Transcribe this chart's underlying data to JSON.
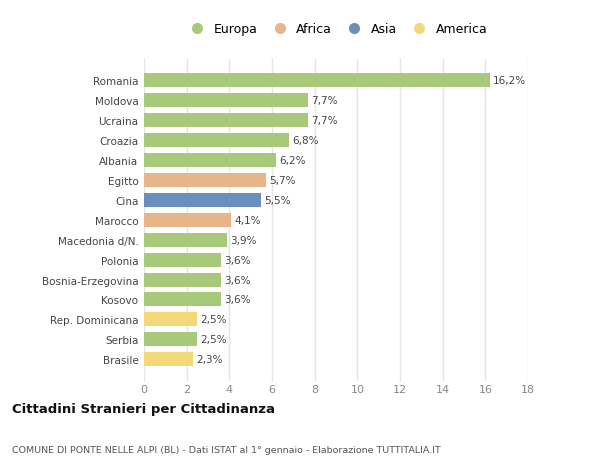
{
  "categories": [
    "Brasile",
    "Serbia",
    "Rep. Dominicana",
    "Kosovo",
    "Bosnia-Erzegovina",
    "Polonia",
    "Macedonia d/N.",
    "Marocco",
    "Cina",
    "Egitto",
    "Albania",
    "Croazia",
    "Ucraina",
    "Moldova",
    "Romania"
  ],
  "values": [
    2.3,
    2.5,
    2.5,
    3.6,
    3.6,
    3.6,
    3.9,
    4.1,
    5.5,
    5.7,
    6.2,
    6.8,
    7.7,
    7.7,
    16.2
  ],
  "labels": [
    "2,3%",
    "2,5%",
    "2,5%",
    "3,6%",
    "3,6%",
    "3,6%",
    "3,9%",
    "4,1%",
    "5,5%",
    "5,7%",
    "6,2%",
    "6,8%",
    "7,7%",
    "7,7%",
    "16,2%"
  ],
  "continents": [
    "America",
    "Europa",
    "America",
    "Europa",
    "Europa",
    "Europa",
    "Europa",
    "Africa",
    "Asia",
    "Africa",
    "Europa",
    "Europa",
    "Europa",
    "Europa",
    "Europa"
  ],
  "colors": {
    "Europa": "#a8c87a",
    "Africa": "#e8b48a",
    "Asia": "#6a8fbe",
    "America": "#f2d878"
  },
  "legend_order": [
    "Europa",
    "Africa",
    "Asia",
    "America"
  ],
  "title": "Cittadini Stranieri per Cittadinanza",
  "subtitle": "COMUNE DI PONTE NELLE ALPI (BL) - Dati ISTAT al 1° gennaio - Elaborazione TUTTITALIA.IT",
  "xlim": [
    0,
    18
  ],
  "xticks": [
    0,
    2,
    4,
    6,
    8,
    10,
    12,
    14,
    16,
    18
  ],
  "background_color": "#ffffff",
  "grid_color": "#e0e8e0",
  "bar_height": 0.7
}
